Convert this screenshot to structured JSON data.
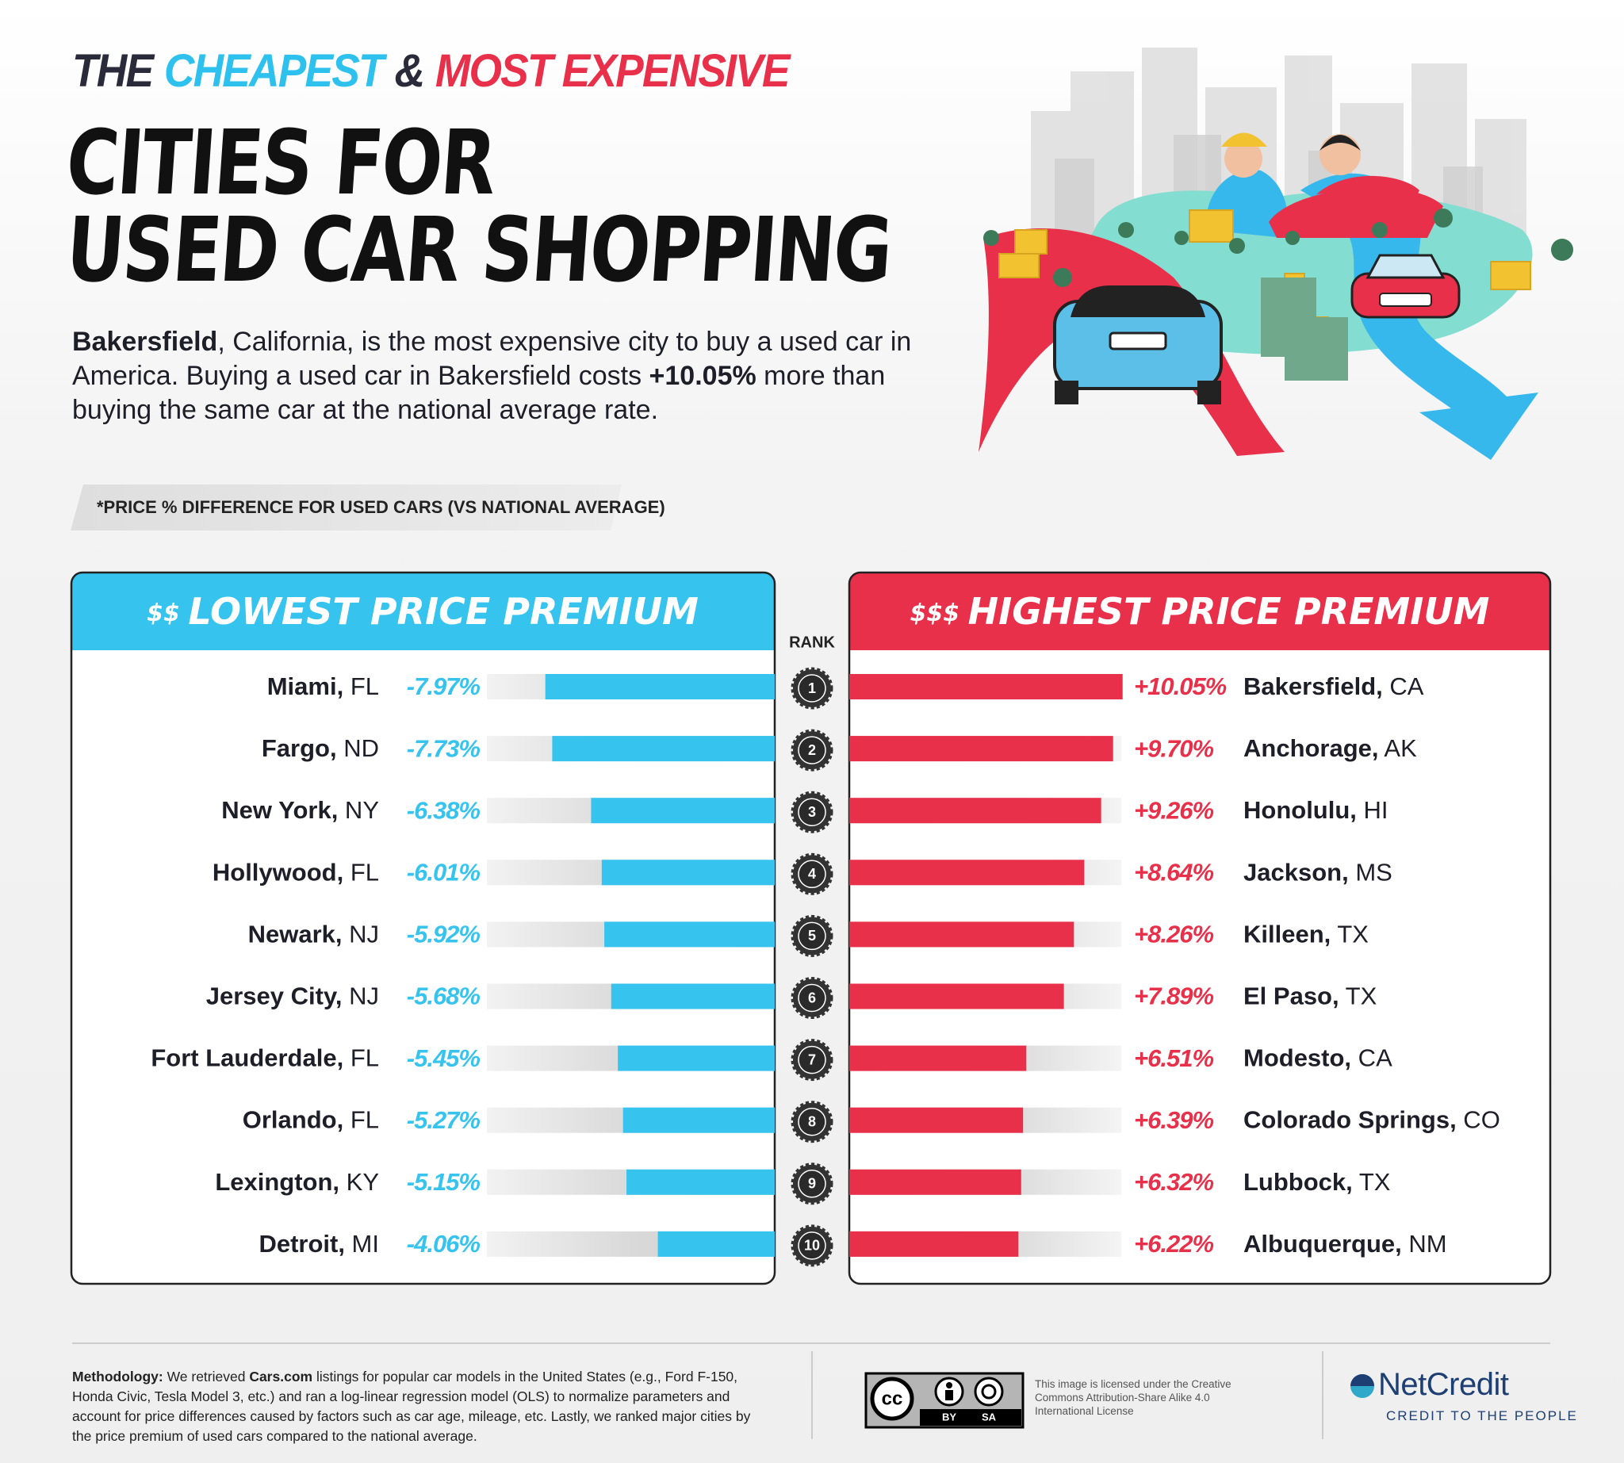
{
  "header": {
    "line1": [
      {
        "text": "THE",
        "color": "#2a2a3a"
      },
      {
        "text": "CHEAPEST",
        "color": "#2ec1ee"
      },
      {
        "text": "&",
        "color": "#2a2a3a"
      },
      {
        "text": "MOST EXPENSIVE",
        "color": "#e8304a"
      }
    ],
    "title_lines": [
      "CITIES FOR",
      "USED CAR SHOPPING"
    ]
  },
  "intro": [
    {
      "text": "Bakersfield",
      "bold": true
    },
    {
      "text": ", California, is the most expensive city to buy a used car in America. Buying a used car in Bakersfield costs ",
      "bold": false
    },
    {
      "text": "+10.05%",
      "bold": true
    },
    {
      "text": " more than buying the same car at the national average rate.",
      "bold": false
    }
  ],
  "note": "*PRICE % DIFFERENCE FOR USED CARS (VS NATIONAL AVERAGE)",
  "rank_label": "RANK",
  "ranks": [
    1,
    2,
    3,
    4,
    5,
    6,
    7,
    8,
    9,
    10
  ],
  "chart_data": [
    {
      "type": "bar",
      "orientation": "horizontal",
      "title": "$$ LOWEST PRICE PREMIUM",
      "categories": [
        "Miami, FL",
        "Fargo, ND",
        "New York, NY",
        "Hollywood, FL",
        "Newark, NJ",
        "Jersey City, NJ",
        "Fort Lauderdale, FL",
        "Orlando, FL",
        "Lexington, KY",
        "Detroit, MI"
      ],
      "values": [
        -7.97,
        -7.73,
        -6.38,
        -6.01,
        -5.92,
        -5.68,
        -5.45,
        -5.27,
        -5.15,
        -4.06
      ],
      "value_labels": [
        "-7.97%",
        "-7.73%",
        "-6.38%",
        "-6.01%",
        "-5.92%",
        "-5.68%",
        "-5.45%",
        "-5.27%",
        "-5.15%",
        "-4.06%"
      ],
      "color": "#36c3ee",
      "xlim": [
        -10,
        0
      ]
    },
    {
      "type": "bar",
      "orientation": "horizontal",
      "title": "$$$ HIGHEST PRICE PREMIUM",
      "categories": [
        "Bakersfield, CA",
        "Anchorage, AK",
        "Honolulu, HI",
        "Jackson, MS",
        "Killeen, TX",
        "El Paso, TX",
        "Modesto, CA",
        "Colorado Springs, CO",
        "Lubbock, TX",
        "Albuquerque, NM"
      ],
      "values": [
        10.05,
        9.7,
        9.26,
        8.64,
        8.26,
        7.89,
        6.51,
        6.39,
        6.32,
        6.22
      ],
      "value_labels": [
        "+10.05%",
        "+9.70%",
        "+9.26%",
        "+8.64%",
        "+8.26%",
        "+7.89%",
        "+6.51%",
        "+6.39%",
        "+6.32%",
        "+6.22%"
      ],
      "color": "#e8304a",
      "xlim": [
        0,
        10
      ]
    }
  ],
  "footer": {
    "methodology": [
      {
        "text": "Methodology:",
        "bold": true
      },
      {
        "text": " We retrieved ",
        "bold": false
      },
      {
        "text": "Cars.com",
        "bold": true
      },
      {
        "text": " listings for popular car models in the United States (e.g., Ford F-150, Honda Civic, Tesla Model 3, etc.) and ran a log-linear regression model (OLS) to normalize parameters and account for price differences caused by factors such as car age, mileage, etc. Lastly, we ranked major cities by the price premium of used cars compared to the national average.",
        "bold": false
      }
    ],
    "cc_mark": "cc",
    "cc_labels": [
      "BY",
      "SA"
    ],
    "license": "This image is licensed under the Creative Commons Attribution-Share Alike 4.0 International License",
    "brand": "NetCredit",
    "tagline": "CREDIT TO THE PEOPLE"
  }
}
